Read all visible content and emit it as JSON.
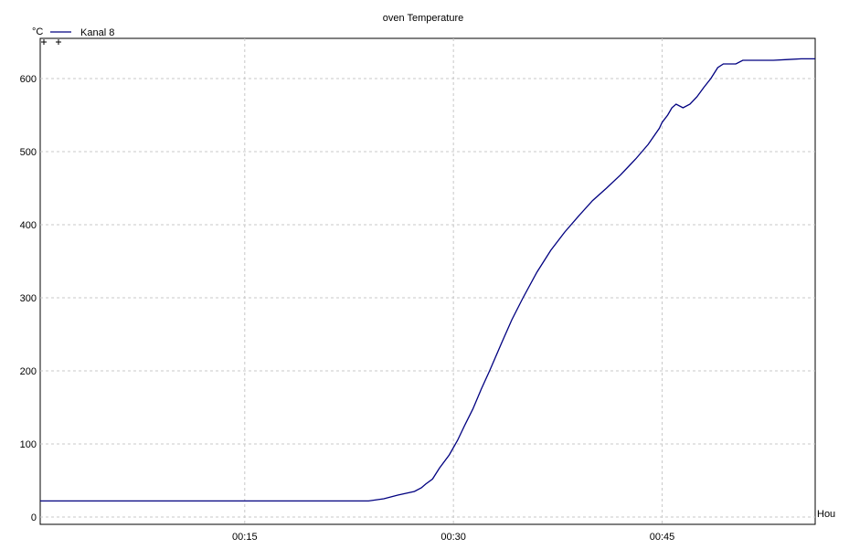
{
  "chart_data": {
    "type": "line",
    "title": "oven Temperature",
    "y_unit": "°C",
    "x_unit": "Hou",
    "x_unit_comment_free": true,
    "xlim": [
      3.3,
      59.0
    ],
    "ylim": [
      -10,
      655
    ],
    "x_ticks": [
      {
        "value": 18.0,
        "label": "00:15"
      },
      {
        "value": 33.0,
        "label": "00:30"
      },
      {
        "value": 48.0,
        "label": "00:45"
      }
    ],
    "y_ticks": [
      {
        "value": 0,
        "label": "0"
      },
      {
        "value": 100,
        "label": "100"
      },
      {
        "value": 200,
        "label": "200"
      },
      {
        "value": 300,
        "label": "300"
      },
      {
        "value": 400,
        "label": "400"
      },
      {
        "value": 500,
        "label": "500"
      },
      {
        "value": 600,
        "label": "600"
      }
    ],
    "grid": true,
    "legend_position": "top-left",
    "series": [
      {
        "name": "Kanal 8",
        "color": "#000080",
        "x": [
          3.3,
          10.0,
          18.0,
          26.9,
          28.0,
          29.0,
          30.2,
          30.7,
          31.0,
          31.5,
          32.0,
          32.7,
          33.3,
          33.8,
          34.4,
          35.0,
          35.6,
          36.5,
          37.2,
          38.0,
          39.0,
          40.0,
          41.0,
          42.0,
          43.0,
          44.0,
          45.0,
          45.6,
          46.1,
          47.0,
          47.8,
          48.0,
          48.4,
          48.7,
          49.0,
          49.5,
          50.0,
          50.5,
          51.0,
          51.5,
          52.0,
          52.4,
          52.8,
          53.3,
          53.8,
          54.5,
          55.0,
          56.0,
          57.0,
          58.0,
          59.0
        ],
        "y": [
          22,
          22,
          22,
          22,
          25,
          30,
          35,
          40,
          45,
          52,
          67,
          85,
          105,
          125,
          148,
          175,
          200,
          240,
          270,
          300,
          335,
          365,
          390,
          412,
          433,
          450,
          468,
          480,
          490,
          510,
          532,
          540,
          550,
          560,
          565,
          560,
          565,
          575,
          588,
          600,
          615,
          620,
          620,
          620,
          625,
          625,
          625,
          625,
          626,
          627,
          627
        ]
      }
    ]
  }
}
